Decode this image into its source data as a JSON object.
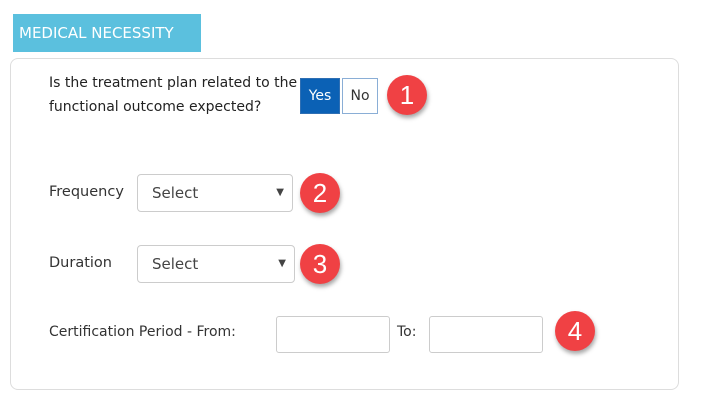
{
  "section": {
    "title": "MEDICAL NECESSITY"
  },
  "question": {
    "text": "Is the treatment plan related to the functional outcome expected?",
    "yes_label": "Yes",
    "no_label": "No",
    "selected": "Yes"
  },
  "frequency": {
    "label": "Frequency",
    "value": "Select"
  },
  "duration": {
    "label": "Duration",
    "value": "Select"
  },
  "certification": {
    "label": "Certification Period - From:",
    "to_label": "To:",
    "from_value": "",
    "to_value": ""
  },
  "badges": [
    "1",
    "2",
    "3",
    "4"
  ],
  "colors": {
    "header": "#5bc0de",
    "selected_button": "#0b61b5",
    "badge": "#f04144"
  }
}
